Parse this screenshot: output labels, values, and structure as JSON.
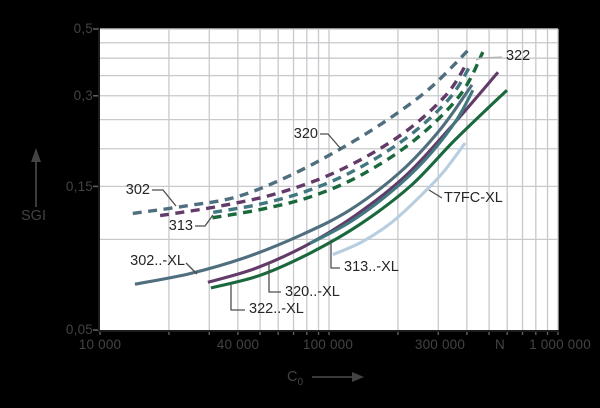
{
  "colors": {
    "slate": "#4f6f7f",
    "purple": "#623b69",
    "teal": "#41787f",
    "green": "#1a693d",
    "lightblue": "#b7cde0",
    "grid": "#c7c9cc",
    "spine_dark": "#1c1c1c",
    "plot_bg": "#ffffff",
    "page_bg": "#000000",
    "outside_text": "#434343",
    "inplot_text": "#262626",
    "leader": "#4d4d4d",
    "leader_light": "#b3b3b6",
    "tick_mark": "#5e5e5e"
  },
  "chart_data": {
    "type": "line",
    "xlabel": "C0",
    "xlabel_main": "C",
    "xlabel_sub": "0",
    "xunit": "N",
    "ylabel": "SGI",
    "xscale": "log",
    "yscale": "log",
    "xlim": [
      10000,
      1000000
    ],
    "ylim": [
      0.05,
      0.5
    ],
    "x_gridlines": [
      20000,
      30000,
      40000,
      50000,
      60000,
      70000,
      80000,
      90000,
      100000,
      200000,
      300000,
      400000,
      500000,
      600000,
      700000,
      800000,
      900000
    ],
    "y_gridlines": [
      0.1,
      0.15,
      0.2,
      0.25,
      0.3,
      0.35,
      0.4,
      0.45,
      0.5
    ],
    "x_tick_labels": [
      {
        "value": 10000,
        "label": "10 000"
      },
      {
        "value": 40000,
        "label": "40 000"
      },
      {
        "value": 100000,
        "label": "100 000"
      },
      {
        "value": 300000,
        "label": "300 000"
      },
      {
        "value": 1000000,
        "label": "1 000 000"
      }
    ],
    "y_tick_labels": [
      {
        "value": 0.5,
        "label": "0,5"
      },
      {
        "value": 0.3,
        "label": "0,3"
      },
      {
        "value": 0.15,
        "label": "0,15"
      },
      {
        "value": 0.05,
        "label": "0,05"
      }
    ],
    "series": [
      {
        "name": "302",
        "type": "dashed",
        "color_key": "slate",
        "data": [
          [
            13900,
            0.122
          ],
          [
            23500,
            0.129
          ],
          [
            38900,
            0.138
          ],
          [
            64200,
            0.16
          ],
          [
            106000,
            0.195
          ],
          [
            175000,
            0.246
          ],
          [
            276000,
            0.318
          ],
          [
            413000,
            0.432
          ]
        ]
      },
      {
        "name": "320",
        "type": "dashed",
        "color_key": "purple",
        "data": [
          [
            18300,
            0.12
          ],
          [
            33400,
            0.129
          ],
          [
            61100,
            0.143
          ],
          [
            112000,
            0.17
          ],
          [
            204000,
            0.221
          ],
          [
            321000,
            0.299
          ],
          [
            401000,
            0.386
          ]
        ]
      },
      {
        "name": "313",
        "type": "dashed",
        "color_key": "teal",
        "data": [
          [
            31200,
            0.123
          ],
          [
            50000,
            0.131
          ],
          [
            82600,
            0.146
          ],
          [
            136000,
            0.173
          ],
          [
            226000,
            0.222
          ],
          [
            337000,
            0.295
          ],
          [
            417000,
            0.382
          ]
        ]
      },
      {
        "name": "322",
        "type": "dashed",
        "color_key": "green",
        "data": [
          [
            31000,
            0.118
          ],
          [
            51000,
            0.126
          ],
          [
            84300,
            0.139
          ],
          [
            139000,
            0.164
          ],
          [
            237000,
            0.214
          ],
          [
            373000,
            0.301
          ],
          [
            470000,
            0.419
          ]
        ]
      },
      {
        "name": "302..-XL",
        "type": "solid",
        "color_key": "slate",
        "data": [
          [
            14200,
            0.071
          ],
          [
            24700,
            0.077
          ],
          [
            43000,
            0.087
          ],
          [
            74700,
            0.103
          ],
          [
            123000,
            0.125
          ],
          [
            204000,
            0.167
          ],
          [
            305000,
            0.231
          ],
          [
            421000,
            0.326
          ]
        ]
      },
      {
        "name": "320..-XL",
        "type": "solid",
        "color_key": "purple",
        "data": [
          [
            29600,
            0.072
          ],
          [
            47500,
            0.08
          ],
          [
            78500,
            0.095
          ],
          [
            130000,
            0.12
          ],
          [
            215000,
            0.162
          ],
          [
            337000,
            0.234
          ],
          [
            547000,
            0.359
          ]
        ]
      },
      {
        "name": "313..-XL",
        "type": "solid",
        "color_key": "teal",
        "data": [
          [
            82600,
            0.097
          ],
          [
            123000,
            0.114
          ],
          [
            185000,
            0.143
          ],
          [
            263000,
            0.184
          ],
          [
            355000,
            0.245
          ],
          [
            425000,
            0.313
          ]
        ]
      },
      {
        "name": "322..-XL",
        "type": "solid",
        "color_key": "green",
        "data": [
          [
            30500,
            0.069
          ],
          [
            50000,
            0.076
          ],
          [
            82600,
            0.09
          ],
          [
            136000,
            0.112
          ],
          [
            226000,
            0.15
          ],
          [
            355000,
            0.214
          ],
          [
            598000,
            0.313
          ]
        ]
      },
      {
        "name": "T7FC-XL",
        "type": "solid",
        "color_key": "lightblue",
        "data": [
          [
            104000,
            0.089
          ],
          [
            139000,
            0.098
          ],
          [
            188000,
            0.114
          ],
          [
            250000,
            0.139
          ],
          [
            315000,
            0.167
          ],
          [
            393000,
            0.209
          ]
        ]
      }
    ],
    "leaders": [
      {
        "for": "302",
        "points": [
          [
            152,
            190
          ],
          [
            163,
            190
          ],
          [
            176,
            206
          ]
        ]
      },
      {
        "for": "313",
        "points": [
          [
            195,
            226
          ],
          [
            205,
            226
          ],
          [
            213,
            215
          ]
        ]
      },
      {
        "for": "320",
        "points": [
          [
            320,
            134
          ],
          [
            328,
            134
          ],
          [
            341,
            149
          ]
        ]
      },
      {
        "for": "322",
        "points": [
          [
            502,
            57
          ],
          [
            481,
            58
          ],
          [
            476,
            60
          ]
        ],
        "light": true
      },
      {
        "for": "302..-XL",
        "points": [
          [
            186,
            263
          ],
          [
            197,
            274
          ]
        ]
      },
      {
        "for": "322..-XL",
        "points": [
          [
            245,
            310
          ],
          [
            231,
            310
          ],
          [
            231,
            285
          ]
        ]
      },
      {
        "for": "320..-XL",
        "points": [
          [
            281,
            292
          ],
          [
            269,
            292
          ],
          [
            269,
            263
          ]
        ]
      },
      {
        "for": "313..-XL",
        "points": [
          [
            340,
            268
          ],
          [
            331,
            268
          ],
          [
            331,
            240
          ]
        ]
      },
      {
        "for": "T7FC-XL",
        "points": [
          [
            442,
            198
          ],
          [
            429,
            190
          ]
        ]
      }
    ]
  }
}
